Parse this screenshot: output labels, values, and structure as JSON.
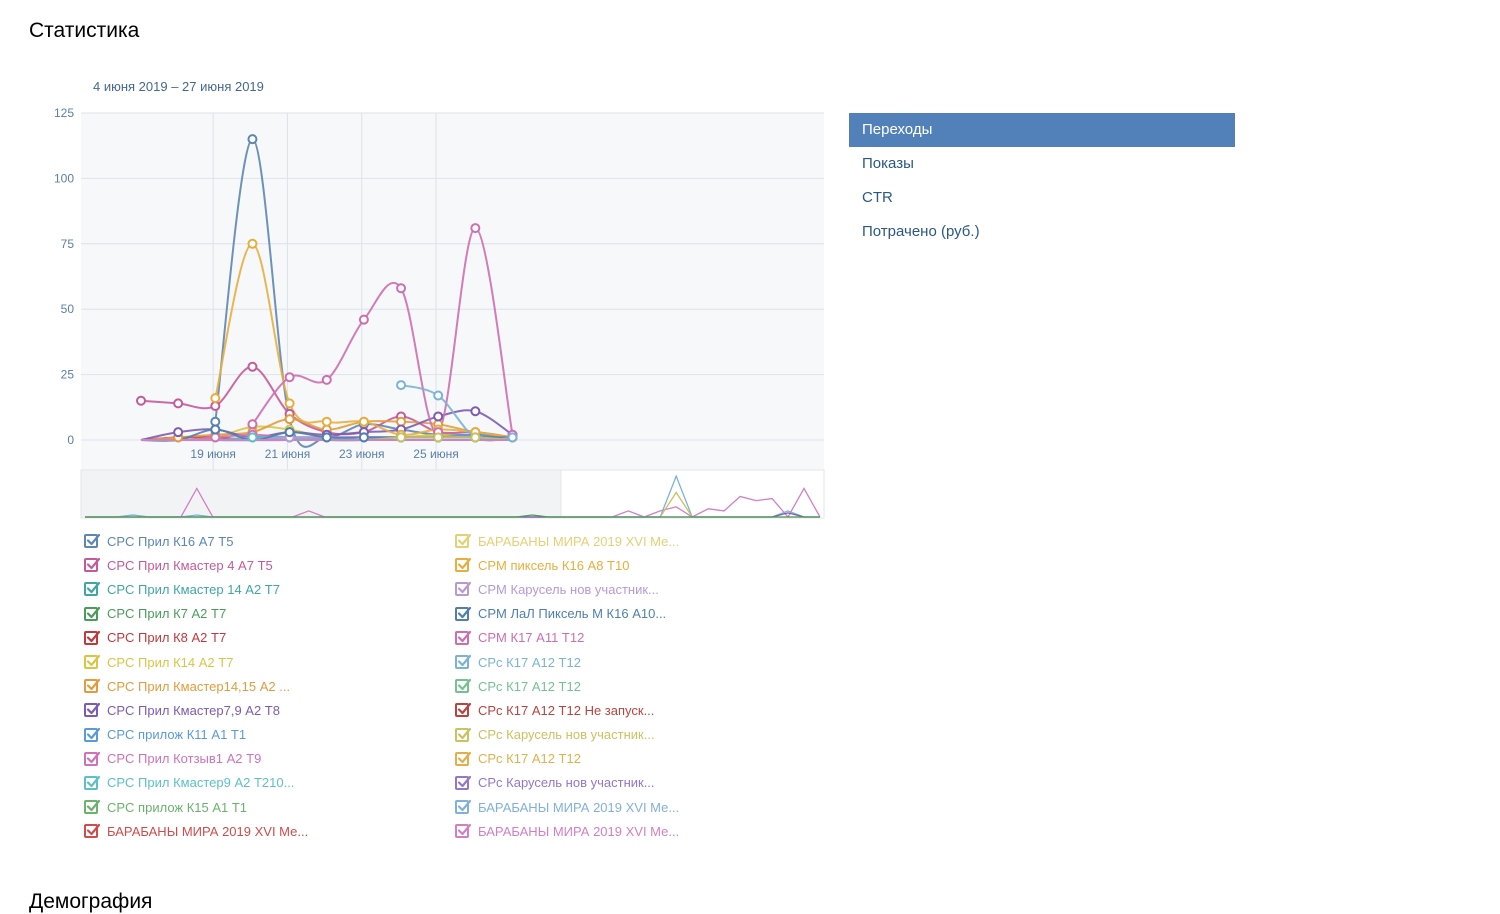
{
  "page": {
    "title": "Статистика",
    "date_range": "4 июня 2019 – 27 июня 2019"
  },
  "metrics": {
    "items": [
      {
        "label": "Переходы",
        "active": true
      },
      {
        "label": "Показы",
        "active": false
      },
      {
        "label": "CTR",
        "active": false
      },
      {
        "label": "Потрачено (руб.)",
        "active": false
      }
    ]
  },
  "colors": {
    "accent": "#5181b8",
    "grid": "#dde3ea",
    "plot_bg": "#f7f8fa"
  },
  "chart_data": {
    "type": "line",
    "x_labels": [
      "",
      "19 июня",
      "",
      "21 июня",
      "",
      "23 июня",
      "",
      "25 июня",
      "",
      "",
      ""
    ],
    "tick_days": [
      "19 июня",
      "21 июня",
      "23 июня",
      "25 июня"
    ],
    "ylim": [
      0,
      125
    ],
    "yticks": [
      0,
      25,
      50,
      75,
      100,
      125
    ],
    "grid": true,
    "legend_position": "bottom",
    "series": [
      {
        "name": "CPC Прил К16 А7 Т5",
        "color": "#5d86b2",
        "values": [
          null,
          null,
          7,
          115,
          8,
          1,
          6,
          4,
          2,
          2,
          1
        ]
      },
      {
        "name": "CPC Прил Кмастер 4 А7 Т5",
        "color": "#c45a9b",
        "values": [
          15,
          14,
          13,
          28,
          10,
          3,
          3,
          9,
          3,
          3,
          1
        ]
      },
      {
        "name": "CPC Прил Кмастер 14 А2 Т7",
        "color": "#3fa6a6",
        "values": [
          0,
          0,
          0,
          0,
          1,
          0,
          0,
          1,
          1,
          1,
          0
        ]
      },
      {
        "name": "CPC Прил К7 А2 Т7",
        "color": "#4b9c5a",
        "values": [
          0,
          0,
          0,
          0,
          0,
          0,
          0,
          0,
          0,
          0,
          0
        ]
      },
      {
        "name": "CPC Прил К8 А2 Т7",
        "color": "#c0393b",
        "values": [
          0,
          1,
          1,
          0,
          0,
          0,
          0,
          0,
          0,
          0,
          0
        ]
      },
      {
        "name": "CPC Прил К14 А2 Т7",
        "color": "#d8c645",
        "values": [
          0,
          0,
          1,
          5,
          4,
          1,
          1,
          1,
          2,
          1,
          0
        ]
      },
      {
        "name": "CPC Прил Кмастер14,15 А2 ...",
        "color": "#e39b3c",
        "values": [
          0,
          1,
          2,
          3,
          8,
          4,
          7,
          7,
          6,
          3,
          1
        ]
      },
      {
        "name": "CPC Прил Кмастер7,9 А2 Т8",
        "color": "#7d5bb4",
        "values": [
          0,
          3,
          4,
          1,
          3,
          2,
          3,
          4,
          9,
          11,
          2
        ]
      },
      {
        "name": "CPC прилож К11 А1 Т1",
        "color": "#5a9ad6",
        "values": [
          0,
          0,
          0,
          0,
          1,
          1,
          1,
          1,
          1,
          2,
          0
        ]
      },
      {
        "name": "CPC Прил Котзыв1 А2 Т9",
        "color": "#cf72b9",
        "values": [
          0,
          0,
          1,
          2,
          1,
          1,
          1,
          1,
          1,
          1,
          0
        ]
      },
      {
        "name": "CPC Прил Кмастер9 А2 Т210...",
        "color": "#5cc1c6",
        "values": [
          0,
          0,
          0,
          1,
          1,
          0,
          1,
          1,
          1,
          1,
          0
        ]
      },
      {
        "name": "CPC прилож К15 А1 Т1",
        "color": "#6ab36b",
        "values": [
          0,
          0,
          0,
          0,
          0,
          0,
          0,
          0,
          0,
          0,
          0
        ]
      },
      {
        "name": "БАРАБАНЫ МИРА 2019 XVI Ме...",
        "color": "#d04c4c",
        "values": [
          0,
          0,
          0,
          0,
          0,
          0,
          0,
          0,
          0,
          0,
          0
        ]
      },
      {
        "name": "БАРАБАНЫ МИРА 2019 XVI Ме...",
        "color": "#e3d176",
        "values": [
          0,
          0,
          0,
          0,
          0,
          0,
          0,
          0,
          0,
          0,
          0
        ]
      },
      {
        "name": "CPM пиксель К16 А8 Т10",
        "color": "#e8ae3d",
        "values": [
          null,
          null,
          16,
          75,
          14,
          7,
          7,
          2,
          4,
          3,
          1
        ]
      },
      {
        "name": "CPM Карусель нов участник...",
        "color": "#b59ad6",
        "values": [
          0,
          0,
          0,
          0,
          1,
          1,
          1,
          1,
          1,
          1,
          0
        ]
      },
      {
        "name": "CPM ЛаЛ Пиксель М К16 А10...",
        "color": "#4f7fae",
        "values": [
          0,
          0,
          4,
          0,
          3,
          1,
          1,
          1,
          1,
          1,
          1
        ]
      },
      {
        "name": "CPM К17 А11 Т12",
        "color": "#cd6eb3",
        "values": [
          null,
          null,
          null,
          6,
          24,
          23,
          46,
          58,
          3,
          81,
          2
        ]
      },
      {
        "name": "CPc К17 А12 Т12",
        "color": "#7bb3d6",
        "values": [
          null,
          null,
          null,
          null,
          null,
          null,
          null,
          21,
          17,
          1,
          1
        ]
      },
      {
        "name": "CPc К17 А12 Т12",
        "color": "#74c28f",
        "values": [
          0,
          0,
          0,
          0,
          0,
          0,
          0,
          0,
          0,
          0,
          0
        ]
      },
      {
        "name": "CPc К17 А12 Т12 Не запуск...",
        "color": "#b8433f",
        "values": [
          0,
          0,
          0,
          0,
          0,
          0,
          0,
          0,
          0,
          0,
          0
        ]
      },
      {
        "name": "CPc Карусель нов участник...",
        "color": "#c9c260",
        "values": [
          0,
          0,
          0,
          0,
          0,
          0,
          0,
          1,
          1,
          1,
          0
        ]
      },
      {
        "name": "CPc К17 А12 Т12",
        "color": "#e1b04c",
        "values": [
          0,
          0,
          0,
          0,
          0,
          0,
          0,
          0,
          0,
          0,
          0
        ]
      },
      {
        "name": "CPc Карусель нов участник...",
        "color": "#9477c6",
        "values": [
          0,
          0,
          0,
          0,
          0,
          0,
          0,
          0,
          0,
          0,
          0
        ]
      },
      {
        "name": "БАРАБАНЫ МИРА 2019 XVI Ме...",
        "color": "#82b0dc",
        "values": [
          0,
          0,
          0,
          0,
          0,
          0,
          0,
          0,
          0,
          0,
          0
        ]
      },
      {
        "name": "БАРАБАНЫ МИРА 2019 XVI Ме...",
        "color": "#d27fc4",
        "values": [
          0,
          0,
          0,
          0,
          0,
          0,
          0,
          0,
          0,
          0,
          0
        ]
      }
    ],
    "navigator": {
      "series": [
        {
          "color": "#d27fc4",
          "values": [
            0,
            0,
            0,
            1,
            0,
            0,
            0,
            14,
            0,
            0,
            0,
            0,
            0,
            0,
            3,
            0,
            0,
            0,
            0,
            0,
            0,
            0,
            0,
            0,
            0,
            0,
            0,
            0,
            0,
            0,
            0,
            0,
            0,
            0,
            3,
            0,
            3,
            5,
            0,
            4,
            3,
            10,
            8,
            9,
            0,
            14,
            0
          ]
        },
        {
          "color": "#7bb3d6",
          "values": [
            0,
            0,
            0,
            1,
            0,
            0,
            0,
            1,
            0,
            0,
            0,
            0,
            0,
            0,
            0,
            0,
            0,
            0,
            0,
            0,
            0,
            0,
            0,
            0,
            0,
            0,
            0,
            0,
            0,
            0,
            0,
            0,
            0,
            0,
            0,
            0,
            0,
            20,
            0,
            0,
            0,
            0,
            0,
            0,
            3,
            0,
            0
          ]
        },
        {
          "color": "#c9c260",
          "values": [
            0,
            0,
            0,
            0,
            0,
            0,
            0,
            0,
            0,
            0,
            0,
            0,
            0,
            0,
            0,
            0,
            0,
            0,
            0,
            0,
            0,
            0,
            0,
            0,
            0,
            0,
            0,
            0,
            0,
            0,
            0,
            0,
            0,
            0,
            0,
            0,
            0,
            12,
            0,
            0,
            0,
            0,
            0,
            0,
            0,
            0,
            0
          ]
        },
        {
          "color": "#7d5bb4",
          "values": [
            0,
            0,
            0,
            0,
            0,
            0,
            0,
            0,
            0,
            0,
            0,
            0,
            0,
            0,
            0,
            0,
            0,
            0,
            0,
            0,
            0,
            0,
            0,
            0,
            0,
            0,
            0,
            0,
            0,
            0,
            0,
            0,
            0,
            0,
            0,
            0,
            0,
            0,
            0,
            0,
            0,
            0,
            0,
            0,
            2,
            0,
            0
          ]
        },
        {
          "color": "#4b9c5a",
          "values": [
            0,
            0,
            0,
            0,
            0,
            0,
            0,
            0,
            0,
            0,
            0,
            0,
            0,
            0,
            0,
            0,
            0,
            0,
            0,
            0,
            0,
            0,
            0,
            0,
            0,
            0,
            0,
            0,
            1,
            0,
            0,
            0,
            0,
            0,
            0,
            0,
            0,
            0,
            0,
            0,
            0,
            0,
            0,
            0,
            0,
            0,
            0
          ]
        }
      ]
    }
  },
  "bottom": {
    "heading": "Демография"
  }
}
